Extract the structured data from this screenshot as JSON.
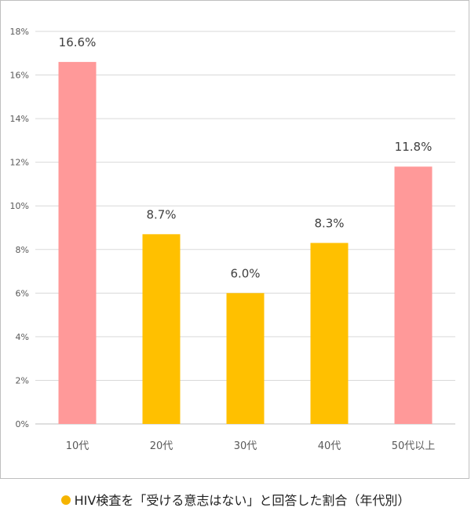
{
  "chart_data": {
    "type": "bar",
    "categories": [
      "10代",
      "20代",
      "30代",
      "40代",
      "50代以上"
    ],
    "values": [
      16.6,
      8.7,
      6.0,
      8.3,
      11.8
    ],
    "value_labels": [
      "16.6%",
      "8.7%",
      "6.0%",
      "8.3%",
      "11.8%"
    ],
    "bar_colors": [
      "#ff9999",
      "#ffc000",
      "#ffc000",
      "#ffc000",
      "#ff9999"
    ],
    "ylim": [
      0,
      18
    ],
    "yticks": [
      0,
      2,
      4,
      6,
      8,
      10,
      12,
      14,
      16,
      18
    ],
    "ytick_labels": [
      "0%",
      "2%",
      "4%",
      "6%",
      "8%",
      "10%",
      "12%",
      "14%",
      "16%",
      "18%"
    ],
    "grid": true,
    "xlabel": "",
    "ylabel": ""
  },
  "caption": {
    "text": "HIV検査を「受ける意志はない」と回答した割合（年代別）",
    "dot_color": "#f5b400"
  }
}
